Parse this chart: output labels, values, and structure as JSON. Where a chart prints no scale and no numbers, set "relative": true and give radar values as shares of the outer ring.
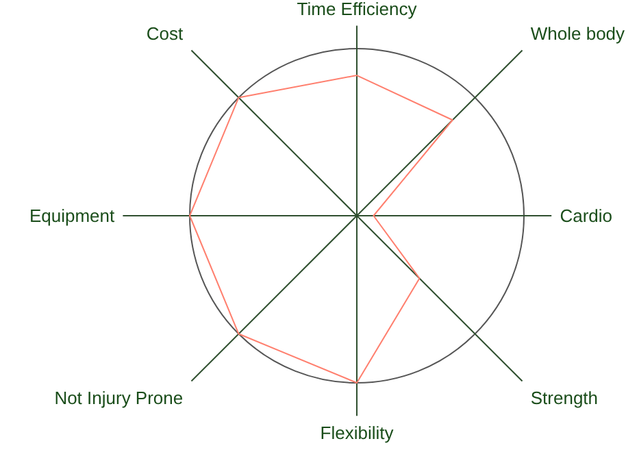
{
  "chart_data": {
    "type": "radar",
    "relative": true,
    "grid": true,
    "categories": [
      "Time Efficiency",
      "Whole body",
      "Cardio",
      "Strength",
      "Flexibility",
      "Not Injury Prone",
      "Equipment",
      "Cost"
    ],
    "series": [
      {
        "color": "#ff7f6e",
        "values": [
          0.84,
          0.81,
          0.1,
          0.53,
          1.0,
          1.0,
          1.0,
          1.0
        ]
      }
    ]
  }
}
